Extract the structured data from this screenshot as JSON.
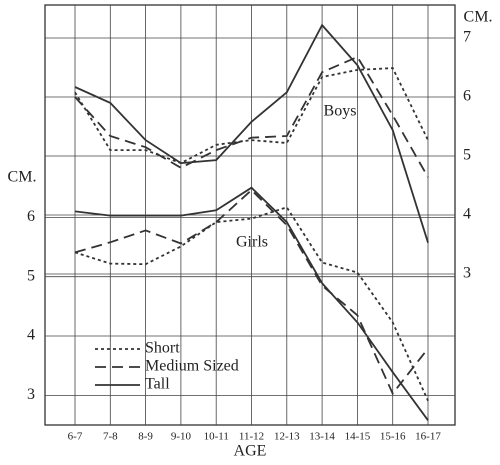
{
  "chart_data": {
    "type": "line",
    "x_label": "AGE",
    "y_label": "CM.",
    "y2_label": "CM.",
    "categories": [
      "6-7",
      "7-8",
      "8-9",
      "9-10",
      "10-11",
      "11-12",
      "12-13",
      "13-14",
      "14-15",
      "15-16",
      "16-17"
    ],
    "ylim": [
      2.5,
      9.58
    ],
    "yticks": [
      3,
      4,
      5,
      6
    ],
    "y2lim": [
      0.44,
      7.56
    ],
    "y2ticks": [
      3,
      4,
      5,
      6,
      7
    ],
    "boys_label": "Boys",
    "girls_label": "Girls",
    "boys_axis": "y2",
    "girls_axis": "y",
    "grid": true,
    "series": [
      {
        "name": "Short",
        "color": "#333333",
        "dash": "3,3",
        "boys": [
          6.08,
          5.1,
          5.1,
          4.88,
          5.19,
          5.27,
          5.22,
          6.34,
          6.46,
          6.49,
          5.27
        ],
        "girls": [
          5.41,
          5.22,
          5.21,
          5.51,
          5.92,
          5.98,
          6.17,
          5.24,
          5.07,
          4.23,
          2.91
        ]
      },
      {
        "name": "Medium Sized",
        "color": "#333333",
        "dash": "11,6",
        "boys": [
          6.0,
          5.34,
          5.15,
          4.8,
          5.1,
          5.31,
          5.34,
          6.42,
          6.68,
          5.69,
          4.64
        ],
        "girls": [
          5.41,
          5.58,
          5.78,
          5.56,
          5.92,
          6.46,
          5.87,
          4.85,
          4.35,
          3.03,
          3.79
        ]
      },
      {
        "name": "Tall",
        "color": "#333333",
        "dash": "none",
        "boys": [
          6.17,
          5.9,
          5.27,
          4.88,
          4.93,
          5.58,
          6.08,
          7.22,
          6.54,
          5.44,
          3.53
        ],
        "girls": [
          6.1,
          6.03,
          6.03,
          6.03,
          6.12,
          6.5,
          5.92,
          4.89,
          4.23,
          3.39,
          2.58
        ]
      }
    ]
  }
}
